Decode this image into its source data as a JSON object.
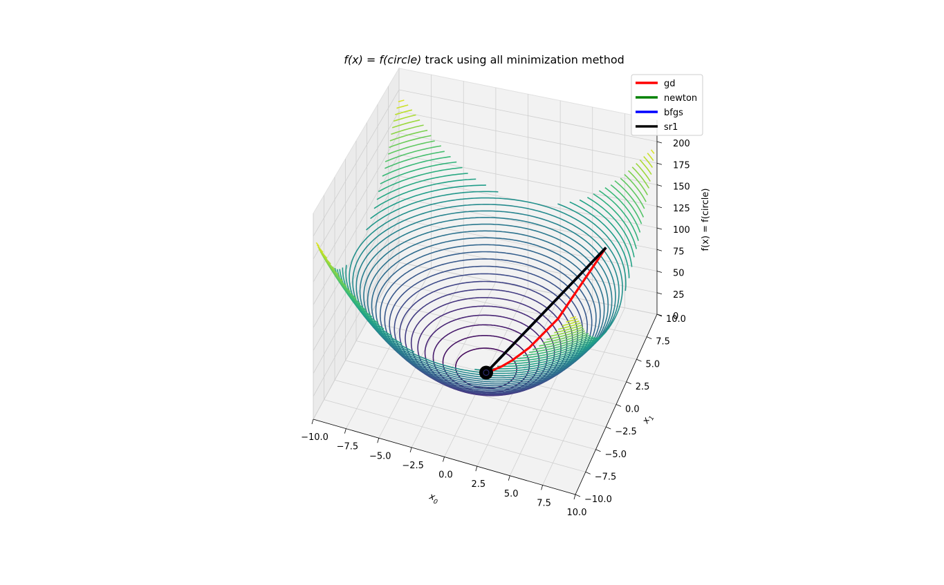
{
  "chart_data": {
    "type": "3d-contour-with-paths",
    "title": "f(x) = f(circle) track using all minimization method",
    "title_parts": {
      "fx": "f(x)",
      "eq": " = ",
      "fcircle": "f(circle)",
      "rest": " track using all minimization method"
    },
    "xlabel": "x",
    "xlabel_sub": "0",
    "ylabel": "x",
    "ylabel_sub": "1",
    "zlabel": "f(x) = f(circle)",
    "function": "x0^2 + x1^2",
    "xlim": [
      -10,
      10
    ],
    "ylim": [
      -10,
      10
    ],
    "zlim": [
      0,
      200
    ],
    "x_ticks": [
      "−10.0",
      "−7.5",
      "−5.0",
      "−2.5",
      "0.0",
      "2.5",
      "5.0",
      "7.5",
      "10.0"
    ],
    "y_ticks": [
      "−10.0",
      "−7.5",
      "−5.0",
      "−2.5",
      "0.0",
      "2.5",
      "5.0",
      "7.5",
      "10.0"
    ],
    "z_ticks": [
      "0",
      "25",
      "50",
      "75",
      "100",
      "125",
      "150",
      "175",
      "200"
    ],
    "contour_levels": 40,
    "colormap": "viridis",
    "grid": true,
    "legend_position": "top-right",
    "series": [
      {
        "name": "gd",
        "color": "#ff0000",
        "points": [
          [
            7.0,
            7.0,
            98.0
          ],
          [
            4.2,
            4.2,
            35.3
          ],
          [
            2.5,
            2.5,
            12.7
          ],
          [
            1.5,
            1.5,
            4.6
          ],
          [
            0.9,
            0.9,
            1.6
          ],
          [
            0.5,
            0.5,
            0.6
          ],
          [
            0.3,
            0.3,
            0.2
          ],
          [
            0.0,
            0.0,
            0.0
          ]
        ]
      },
      {
        "name": "newton",
        "color": "#008000",
        "points": [
          [
            7.0,
            7.0,
            98.0
          ],
          [
            0.0,
            0.0,
            0.0
          ]
        ]
      },
      {
        "name": "bfgs",
        "color": "#0000ff",
        "points": [
          [
            7.0,
            7.0,
            98.0
          ],
          [
            0.0,
            0.0,
            0.0
          ]
        ]
      },
      {
        "name": "sr1",
        "color": "#000000",
        "points": [
          [
            7.0,
            7.0,
            98.0
          ],
          [
            0.0,
            0.0,
            0.0
          ]
        ]
      }
    ],
    "minimum_marker": {
      "x0": 0.0,
      "x1": 0.0,
      "f": 0.0
    }
  }
}
